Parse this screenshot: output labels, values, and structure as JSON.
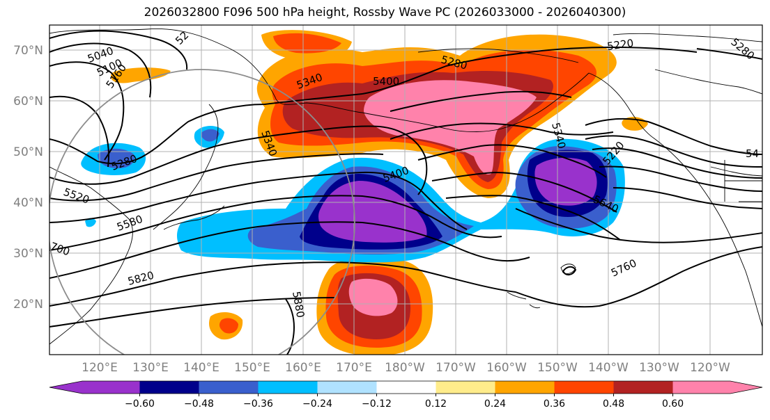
{
  "title": "2026032800 F096 500 hPa height, Rossby Wave PC (2026033000 - 2026040300)",
  "lat_labels": [
    "70°N",
    "60°N",
    "50°N",
    "40°N",
    "30°N",
    "20°N"
  ],
  "lon_labels": [
    "120°E",
    "130°E",
    "140°E",
    "150°E",
    "160°E",
    "170°E",
    "180°W",
    "170°W",
    "160°W",
    "150°W",
    "140°W",
    "130°W",
    "120°W"
  ],
  "colorbar": {
    "colors": [
      "#9932cc",
      "#00008b",
      "#3a5fcd",
      "#00bfff",
      "#b0e2ff",
      "#ffffff",
      "#ffec8b",
      "#ffa500",
      "#ff4500",
      "#b22222",
      "#ff82ab"
    ],
    "tick_labels": [
      "−0.60",
      "−0.48",
      "−0.36",
      "−0.24",
      "−0.12",
      "0.12",
      "0.24",
      "0.36",
      "0.48",
      "0.60"
    ]
  },
  "contour_labels": [
    "5040",
    "5100",
    "5160",
    "52",
    "5280",
    "5340",
    "5400",
    "5280",
    "5220",
    "5340",
    "5400",
    "5340",
    "5220",
    "54",
    "5280",
    "5520",
    "5580",
    "700",
    "5820",
    "5880",
    "5640",
    "5760"
  ]
}
